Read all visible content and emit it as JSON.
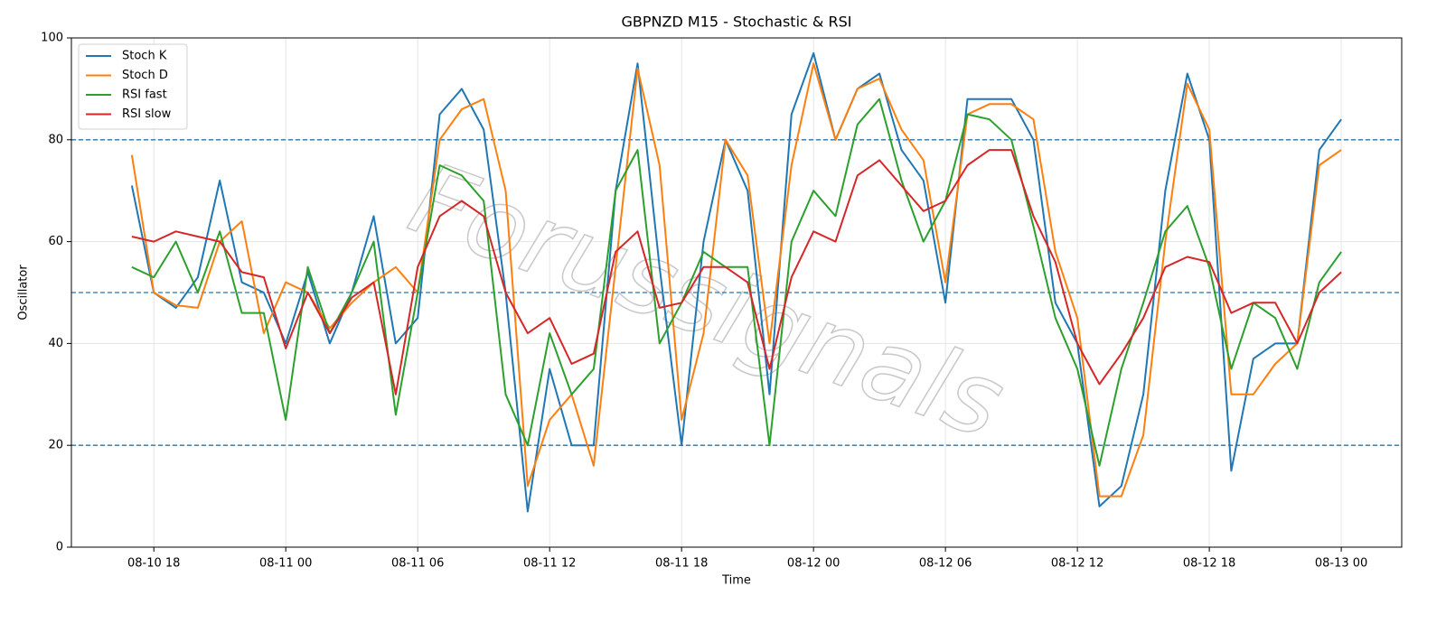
{
  "chart_data": {
    "type": "line",
    "title": "GBPNZD M15 - Stochastic & RSI",
    "xlabel": "Time",
    "ylabel": "Oscillator",
    "watermark": "Forussignals",
    "x": [
      "08-10 17",
      "08-10 18",
      "08-10 19",
      "08-10 20",
      "08-10 21",
      "08-10 22",
      "08-10 23",
      "08-11 00",
      "08-11 01",
      "08-11 02",
      "08-11 03",
      "08-11 04",
      "08-11 05",
      "08-11 06",
      "08-11 07",
      "08-11 08",
      "08-11 09",
      "08-11 10",
      "08-11 11",
      "08-11 12",
      "08-11 13",
      "08-11 14",
      "08-11 15",
      "08-11 16",
      "08-11 17",
      "08-11 18",
      "08-11 19",
      "08-11 20",
      "08-11 21",
      "08-11 22",
      "08-11 23",
      "08-12 00",
      "08-12 01",
      "08-12 02",
      "08-12 03",
      "08-12 04",
      "08-12 05",
      "08-12 06",
      "08-12 07",
      "08-12 08",
      "08-12 09",
      "08-12 10",
      "08-12 11",
      "08-12 12",
      "08-12 13",
      "08-12 14",
      "08-12 15",
      "08-12 16",
      "08-12 17",
      "08-12 18",
      "08-12 19",
      "08-12 20",
      "08-12 21",
      "08-12 22",
      "08-12 23",
      "08-13 00"
    ],
    "series": [
      {
        "name": "Stoch K",
        "color": "#1f77b4",
        "values": [
          71,
          50,
          47,
          53,
          72,
          52,
          50,
          40,
          54,
          40,
          50,
          65,
          40,
          45,
          85,
          90,
          82,
          50,
          7,
          35,
          20,
          20,
          70,
          95,
          55,
          20,
          60,
          80,
          70,
          30,
          85,
          97,
          80,
          90,
          93,
          78,
          72,
          48,
          88,
          88,
          88,
          80,
          48,
          40,
          8,
          12,
          30,
          70,
          93,
          80,
          15,
          37,
          40,
          40,
          78,
          84
        ]
      },
      {
        "name": "Stoch D",
        "color": "#ff7f0e",
        "values": [
          77,
          50,
          47.5,
          47,
          60,
          64,
          42,
          52,
          50,
          43,
          48,
          52,
          55,
          50,
          80,
          86,
          88,
          70,
          12,
          25,
          30,
          16,
          55,
          94,
          75,
          25,
          42,
          80,
          73,
          40,
          75,
          95,
          80,
          90,
          92,
          82,
          76,
          52,
          85,
          87,
          87,
          84,
          58,
          45,
          10,
          10,
          22,
          60,
          91,
          82,
          30,
          30,
          36,
          40,
          75,
          78
        ]
      },
      {
        "name": "RSI fast",
        "color": "#2ca02c",
        "values": [
          55,
          53,
          60,
          50,
          62,
          46,
          46,
          25,
          55,
          42,
          50,
          60,
          26,
          50,
          75,
          73,
          68,
          30,
          20,
          42,
          30,
          35,
          70,
          78,
          40,
          48,
          58,
          55,
          55,
          20,
          60,
          70,
          65,
          83,
          88,
          72,
          60,
          68,
          85,
          84,
          80,
          63,
          45,
          35,
          16,
          35,
          48,
          62,
          67,
          55,
          35,
          48,
          45,
          35,
          52,
          58
        ]
      },
      {
        "name": "RSI slow",
        "color": "#d62728",
        "values": [
          61,
          60,
          62,
          61,
          60,
          54,
          53,
          39,
          50,
          42,
          49,
          52,
          30,
          55,
          65,
          68,
          65,
          50,
          42,
          45,
          36,
          38,
          58,
          62,
          47,
          48,
          55,
          55,
          52,
          35,
          53,
          62,
          60,
          73,
          76,
          71,
          66,
          68,
          75,
          78,
          78,
          65,
          56,
          40,
          32,
          38,
          45,
          55,
          57,
          56,
          46,
          48,
          48,
          40,
          50,
          54
        ]
      }
    ],
    "xticks": [
      "08-10 18",
      "08-11 00",
      "08-11 06",
      "08-11 12",
      "08-11 18",
      "08-12 00",
      "08-12 06",
      "08-12 12",
      "08-12 18",
      "08-13 00"
    ],
    "ylim": [
      0,
      100
    ],
    "yticks": [
      0,
      20,
      40,
      60,
      80,
      100
    ],
    "hlines": [
      20,
      50,
      80
    ],
    "hline_color": "#1f77b4",
    "grid": true,
    "legend": "upper left"
  }
}
